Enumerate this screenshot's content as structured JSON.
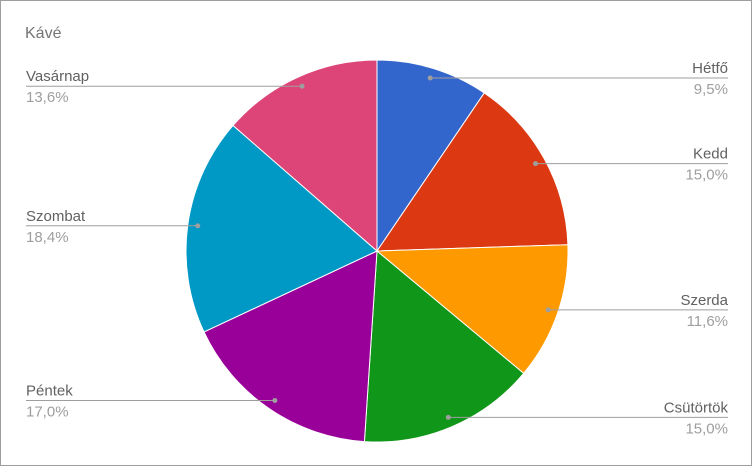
{
  "chart_data": {
    "type": "pie",
    "title": "Kávé",
    "categories": [
      "Hétfő",
      "Kedd",
      "Szerda",
      "Csütörtök",
      "Péntek",
      "Szombat",
      "Vasárnap"
    ],
    "values": [
      9.5,
      15.0,
      11.6,
      15.0,
      17.0,
      18.4,
      13.6
    ],
    "labels": [
      "9,5%",
      "15,0%",
      "11,6%",
      "15,0%",
      "17,0%",
      "18,4%",
      "13,6%"
    ],
    "colors": [
      "#3366cc",
      "#dc3912",
      "#ff9900",
      "#109618",
      "#990099",
      "#0099c6",
      "#dd4477"
    ],
    "legend": "labeled"
  }
}
